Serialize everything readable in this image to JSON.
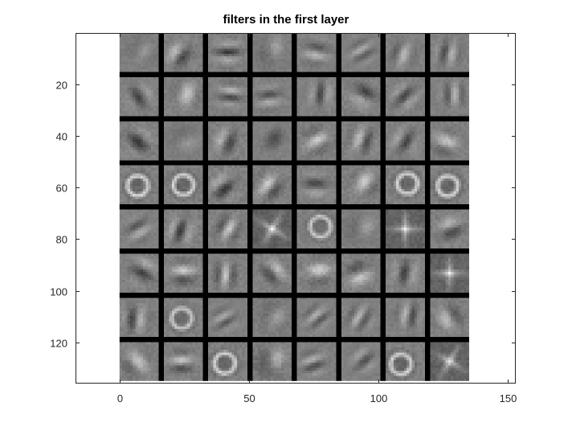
{
  "chart_data": {
    "type": "heatmap",
    "title": "filters in the first layer",
    "xlabel": "",
    "ylabel": "",
    "xlim": [
      -17,
      153
    ],
    "ylim": [
      0,
      136
    ],
    "y_direction": "reversed",
    "xticks": [
      0,
      50,
      100,
      150
    ],
    "yticks": [
      20,
      40,
      60,
      80,
      100,
      120
    ],
    "colormap": "gray",
    "grid": false,
    "image_extent": {
      "x": [
        0,
        135
      ],
      "y": [
        0,
        135
      ]
    },
    "filter_grid": {
      "rows": 8,
      "cols": 8,
      "tile_size": 15,
      "separator": 2
    },
    "filters": [
      {
        "angle": 30,
        "freq": 0.35,
        "contrast": 0.55,
        "type": "blob"
      },
      {
        "angle": 35,
        "freq": 0.55,
        "contrast": 0.75,
        "type": "gabor"
      },
      {
        "angle": 90,
        "freq": 0.9,
        "contrast": 0.7,
        "type": "gabor"
      },
      {
        "angle": 0,
        "freq": 0.4,
        "contrast": 0.6,
        "type": "blob"
      },
      {
        "angle": 100,
        "freq": 0.8,
        "contrast": 0.6,
        "type": "gabor"
      },
      {
        "angle": 60,
        "freq": 1.1,
        "contrast": 0.45,
        "type": "gabor"
      },
      {
        "angle": 20,
        "freq": 0.7,
        "contrast": 0.55,
        "type": "gabor"
      },
      {
        "angle": 10,
        "freq": 0.9,
        "contrast": 0.6,
        "type": "gabor"
      },
      {
        "angle": 150,
        "freq": 0.6,
        "contrast": 0.6,
        "type": "gabor"
      },
      {
        "angle": 20,
        "freq": 0.45,
        "contrast": 0.7,
        "type": "gabor"
      },
      {
        "angle": 95,
        "freq": 1.0,
        "contrast": 0.6,
        "type": "gabor"
      },
      {
        "angle": 85,
        "freq": 0.9,
        "contrast": 0.55,
        "type": "gabor"
      },
      {
        "angle": 5,
        "freq": 0.85,
        "contrast": 0.6,
        "type": "gabor"
      },
      {
        "angle": 120,
        "freq": 0.5,
        "contrast": 0.7,
        "type": "gabor"
      },
      {
        "angle": 45,
        "freq": 0.8,
        "contrast": 0.6,
        "type": "gabor"
      },
      {
        "angle": 0,
        "freq": 1.0,
        "contrast": 0.55,
        "type": "gabor"
      },
      {
        "angle": 130,
        "freq": 0.5,
        "contrast": 0.75,
        "type": "gabor"
      },
      {
        "angle": 75,
        "freq": 0.6,
        "contrast": 0.5,
        "type": "blob"
      },
      {
        "angle": 25,
        "freq": 0.6,
        "contrast": 0.7,
        "type": "gabor"
      },
      {
        "angle": 40,
        "freq": 0.35,
        "contrast": 0.5,
        "type": "gabor"
      },
      {
        "angle": 60,
        "freq": 0.6,
        "contrast": 0.7,
        "type": "gabor"
      },
      {
        "angle": 20,
        "freq": 0.75,
        "contrast": 0.7,
        "type": "gabor"
      },
      {
        "angle": 30,
        "freq": 0.7,
        "contrast": 0.6,
        "type": "gabor"
      },
      {
        "angle": 110,
        "freq": 0.55,
        "contrast": 0.7,
        "type": "gabor"
      },
      {
        "angle": 0,
        "freq": 0.5,
        "contrast": 0.8,
        "type": "ring"
      },
      {
        "angle": 45,
        "freq": 0.5,
        "contrast": 0.8,
        "type": "ring"
      },
      {
        "angle": 50,
        "freq": 0.6,
        "contrast": 0.8,
        "type": "gabor"
      },
      {
        "angle": 40,
        "freq": 0.6,
        "contrast": 0.8,
        "type": "gabor"
      },
      {
        "angle": 90,
        "freq": 0.7,
        "contrast": 0.6,
        "type": "gabor"
      },
      {
        "angle": 35,
        "freq": 0.5,
        "contrast": 0.75,
        "type": "gabor"
      },
      {
        "angle": 0,
        "freq": 0.5,
        "contrast": 0.8,
        "type": "ring"
      },
      {
        "angle": 0,
        "freq": 0.5,
        "contrast": 0.8,
        "type": "ring"
      },
      {
        "angle": 60,
        "freq": 0.9,
        "contrast": 0.5,
        "type": "gabor"
      },
      {
        "angle": 20,
        "freq": 0.8,
        "contrast": 0.75,
        "type": "gabor"
      },
      {
        "angle": 30,
        "freq": 0.8,
        "contrast": 0.7,
        "type": "gabor"
      },
      {
        "angle": 120,
        "freq": 0.55,
        "contrast": 0.8,
        "type": "cross"
      },
      {
        "angle": 80,
        "freq": 0.5,
        "contrast": 0.7,
        "type": "ring"
      },
      {
        "angle": 30,
        "freq": 0.45,
        "contrast": 0.6,
        "type": "blob"
      },
      {
        "angle": 90,
        "freq": 0.7,
        "contrast": 0.75,
        "type": "cross"
      },
      {
        "angle": 70,
        "freq": 0.6,
        "contrast": 0.7,
        "type": "gabor"
      },
      {
        "angle": 120,
        "freq": 0.6,
        "contrast": 0.7,
        "type": "gabor"
      },
      {
        "angle": 90,
        "freq": 0.7,
        "contrast": 0.8,
        "type": "gabor"
      },
      {
        "angle": 5,
        "freq": 0.9,
        "contrast": 0.7,
        "type": "gabor"
      },
      {
        "angle": 140,
        "freq": 0.6,
        "contrast": 0.7,
        "type": "gabor"
      },
      {
        "angle": 85,
        "freq": 0.5,
        "contrast": 0.8,
        "type": "gabor"
      },
      {
        "angle": 70,
        "freq": 0.5,
        "contrast": 0.8,
        "type": "gabor"
      },
      {
        "angle": 10,
        "freq": 0.7,
        "contrast": 0.65,
        "type": "gabor"
      },
      {
        "angle": 0,
        "freq": 0.55,
        "contrast": 0.75,
        "type": "cross"
      },
      {
        "angle": 5,
        "freq": 0.8,
        "contrast": 0.7,
        "type": "gabor"
      },
      {
        "angle": 45,
        "freq": 0.4,
        "contrast": 0.7,
        "type": "ring"
      },
      {
        "angle": 60,
        "freq": 1.1,
        "contrast": 0.45,
        "type": "gabor"
      },
      {
        "angle": 40,
        "freq": 0.5,
        "contrast": 0.7,
        "type": "blob"
      },
      {
        "angle": 50,
        "freq": 1.1,
        "contrast": 0.5,
        "type": "gabor"
      },
      {
        "angle": 30,
        "freq": 1.0,
        "contrast": 0.55,
        "type": "gabor"
      },
      {
        "angle": 10,
        "freq": 0.9,
        "contrast": 0.6,
        "type": "gabor"
      },
      {
        "angle": 150,
        "freq": 0.5,
        "contrast": 0.7,
        "type": "gabor"
      },
      {
        "angle": 140,
        "freq": 0.5,
        "contrast": 0.7,
        "type": "gabor"
      },
      {
        "angle": 90,
        "freq": 0.8,
        "contrast": 0.7,
        "type": "gabor"
      },
      {
        "angle": 0,
        "freq": 0.5,
        "contrast": 0.8,
        "type": "ring"
      },
      {
        "angle": 15,
        "freq": 0.35,
        "contrast": 0.8,
        "type": "blob"
      },
      {
        "angle": 70,
        "freq": 1.0,
        "contrast": 0.55,
        "type": "gabor"
      },
      {
        "angle": 50,
        "freq": 0.9,
        "contrast": 0.5,
        "type": "gabor"
      },
      {
        "angle": 0,
        "freq": 0.5,
        "contrast": 0.8,
        "type": "ring"
      },
      {
        "angle": 120,
        "freq": 0.6,
        "contrast": 0.75,
        "type": "cross"
      }
    ]
  }
}
